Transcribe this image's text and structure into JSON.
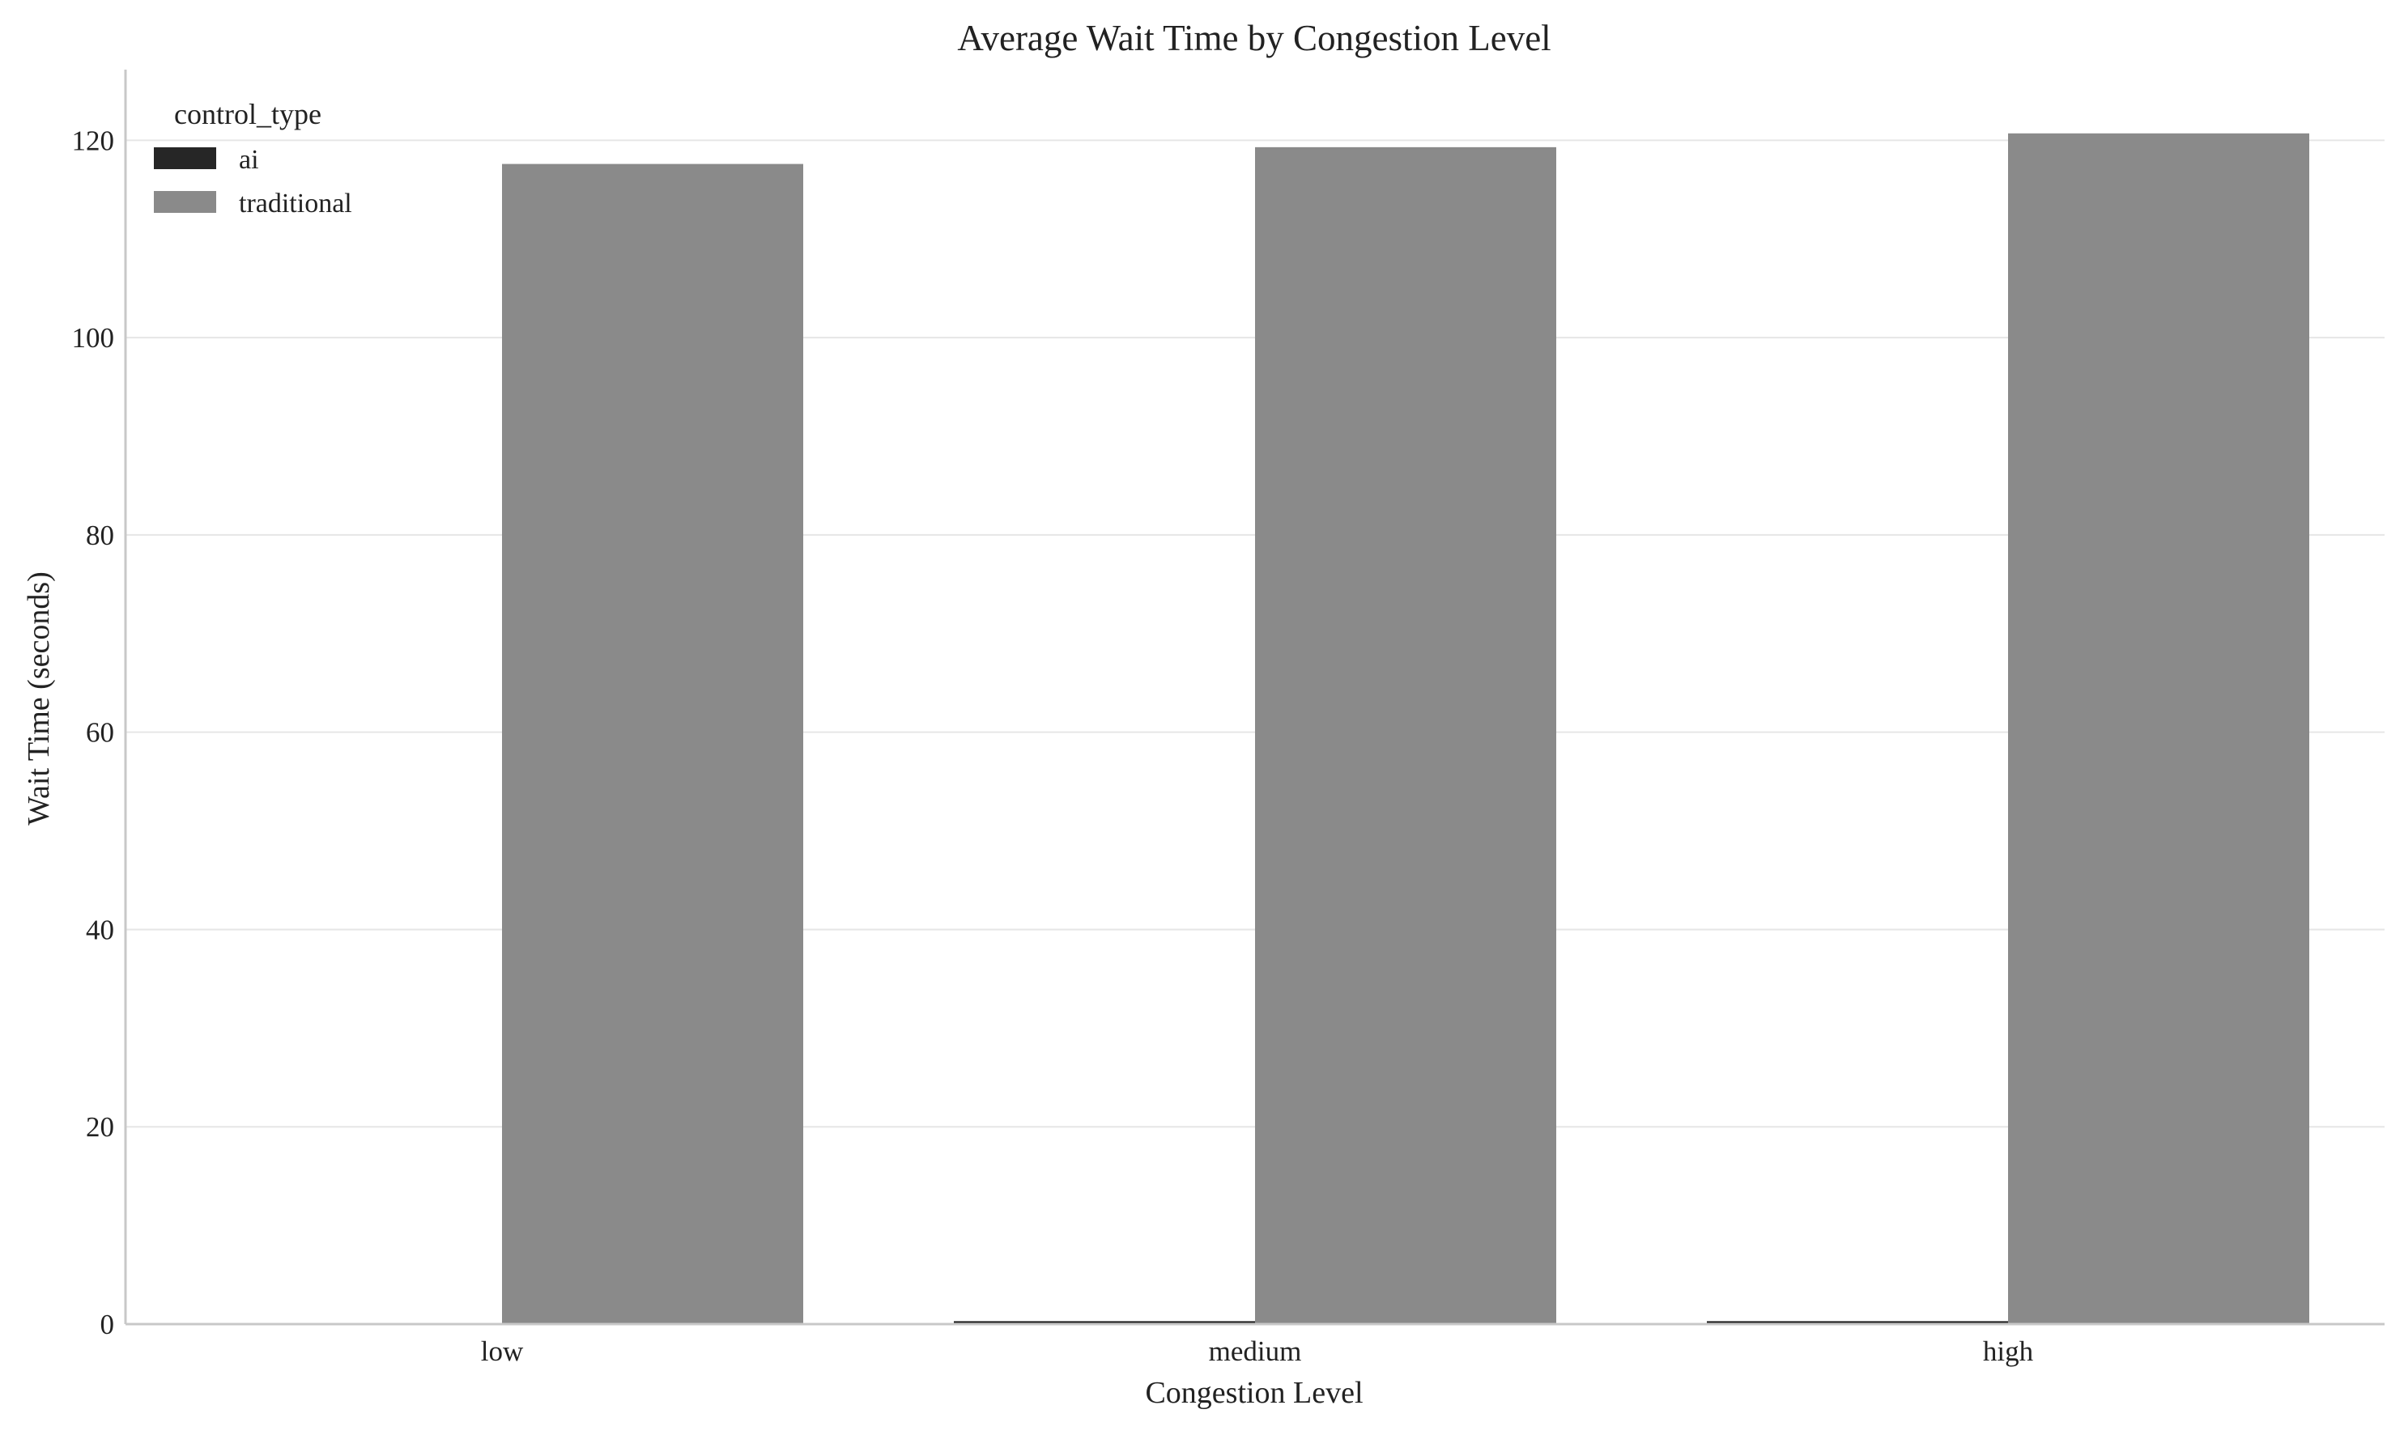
{
  "chart_data": {
    "type": "bar",
    "title": "Average Wait Time by Congestion Level",
    "xlabel": "Congestion Level",
    "ylabel": "Wait Time (seconds)",
    "categories": [
      "low",
      "medium",
      "high"
    ],
    "series": [
      {
        "name": "ai",
        "values": [
          0.1,
          0.3,
          0.3
        ],
        "color": "#262626"
      },
      {
        "name": "traditional",
        "values": [
          117.6,
          119.3,
          120.7
        ],
        "color": "#8a8a8a"
      }
    ],
    "ylim": [
      0,
      127
    ],
    "yticks": [
      "0",
      "20",
      "40",
      "60",
      "80",
      "100",
      "120"
    ],
    "grid": true,
    "grid_axis": "y",
    "legend": {
      "title": "control_type",
      "placement": "top-left"
    }
  }
}
